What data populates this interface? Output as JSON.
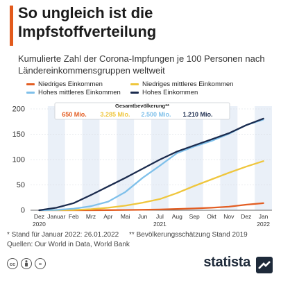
{
  "header": {
    "title": "So ungleich ist die Impfstoffverteilung",
    "subtitle": "Kumulierte Zahl der Corona-Impfungen je 100 Personen nach Ländereinkommensgruppen weltweit"
  },
  "colors": {
    "accent": "#e25a1c",
    "low": "#e35e23",
    "lower_middle": "#efc63c",
    "upper_middle": "#7fc0ea",
    "high": "#1b2b4e"
  },
  "population": {
    "title": "Gesamtbevölkerung**",
    "values": [
      "650 Mio.",
      "3.285 Mio.",
      "2.500 Mio.",
      "1.210 Mio."
    ]
  },
  "chart_data": {
    "type": "line",
    "x": [
      "Dez",
      "Januar",
      "Feb",
      "Mrz",
      "Apr",
      "Mai",
      "Jun",
      "Jul",
      "Aug",
      "Sep",
      "Okt",
      "Nov",
      "Dez",
      "Jan"
    ],
    "year_labels": [
      {
        "text": "2020",
        "index": 0
      },
      {
        "text": "2021",
        "index": 7
      },
      {
        "text": "2022",
        "index": 13
      }
    ],
    "ylim": [
      0,
      200
    ],
    "yticks": [
      0,
      50,
      100,
      150,
      200
    ],
    "series": [
      {
        "name": "Niedriges Einkommen",
        "color": "#e35e23",
        "values": [
          0,
          0,
          0,
          0,
          0.3,
          0.6,
          1,
          1.5,
          2.5,
          3.5,
          5,
          7,
          11,
          14
        ]
      },
      {
        "name": "Niedriges mittleres Einkommen",
        "color": "#efc63c",
        "values": [
          0,
          0.1,
          0.5,
          2,
          5,
          9,
          15,
          22,
          34,
          48,
          61,
          74,
          86,
          97
        ]
      },
      {
        "name": "Hohes mittleres Einkommen",
        "color": "#7fc0ea",
        "values": [
          0,
          0.5,
          3,
          8,
          17,
          36,
          64,
          88,
          113,
          126,
          137,
          151,
          168,
          179
        ]
      },
      {
        "name": "Hohes Einkommen",
        "color": "#1b2b4e",
        "values": [
          0,
          5,
          14,
          30,
          47,
          64,
          82,
          100,
          116,
          128,
          140,
          152,
          168,
          181
        ]
      }
    ]
  },
  "footer": {
    "note_left": "* Stand für Januar 2022: 26.01.2022",
    "note_right": "** Bevölkerungsschätzung Stand 2019",
    "source": "Quellen: Our World in Data, World Bank",
    "brand": "statista",
    "cc_icons": [
      "cc-icon",
      "by-icon",
      "nd-icon"
    ]
  }
}
